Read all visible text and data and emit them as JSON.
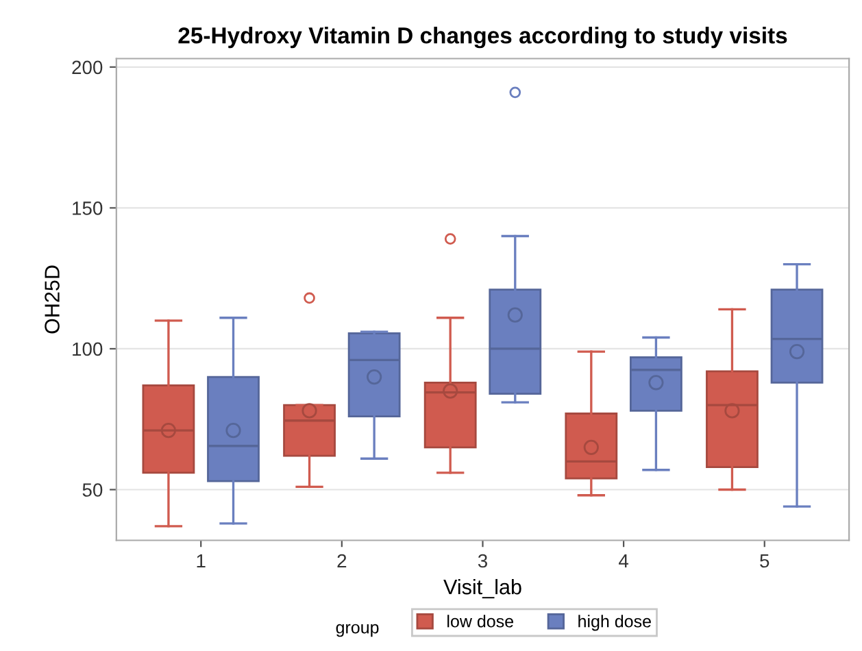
{
  "chart_data": {
    "type": "box",
    "title": "25-Hydroxy Vitamin D changes according to study visits",
    "xlabel": "Visit_lab",
    "ylabel": "OH25D",
    "legend_title": "group",
    "categories": [
      "1",
      "2",
      "3",
      "4",
      "5"
    ],
    "ylim": [
      32,
      203
    ],
    "yticks": [
      50,
      100,
      150,
      200
    ],
    "grid": "y",
    "legend": "bottom",
    "marker": "circle",
    "series": [
      {
        "name": "low dose",
        "color": "#d05b4f",
        "boxes": [
          {
            "low": 37,
            "q1": 56,
            "median": 71,
            "q3": 87,
            "high": 110,
            "mean": 71
          },
          {
            "low": 51,
            "q1": 62,
            "median": 74.5,
            "q3": 80,
            "high": 80,
            "mean": 78,
            "outliers": [
              118
            ]
          },
          {
            "low": 56,
            "q1": 65,
            "median": 84.5,
            "q3": 88,
            "high": 111,
            "mean": 85,
            "outliers": [
              139
            ]
          },
          {
            "low": 48,
            "q1": 54,
            "median": 60,
            "q3": 77,
            "high": 99,
            "mean": 65
          },
          {
            "low": 50,
            "q1": 58,
            "median": 80,
            "q3": 92,
            "high": 114,
            "mean": 78
          }
        ]
      },
      {
        "name": "high dose",
        "color": "#6a7fbf",
        "boxes": [
          {
            "low": 38,
            "q1": 53,
            "median": 65.5,
            "q3": 90,
            "high": 111,
            "mean": 71
          },
          {
            "low": 61,
            "q1": 76,
            "median": 96,
            "q3": 105.5,
            "high": 106,
            "mean": 90
          },
          {
            "low": 81,
            "q1": 84,
            "median": 100,
            "q3": 121,
            "high": 140,
            "mean": 112,
            "outliers": [
              191
            ]
          },
          {
            "low": 57,
            "q1": 78,
            "median": 92.5,
            "q3": 97,
            "high": 104,
            "mean": 88
          },
          {
            "low": 44,
            "q1": 88,
            "median": 103.5,
            "q3": 121,
            "high": 130,
            "mean": 99
          }
        ]
      }
    ]
  }
}
